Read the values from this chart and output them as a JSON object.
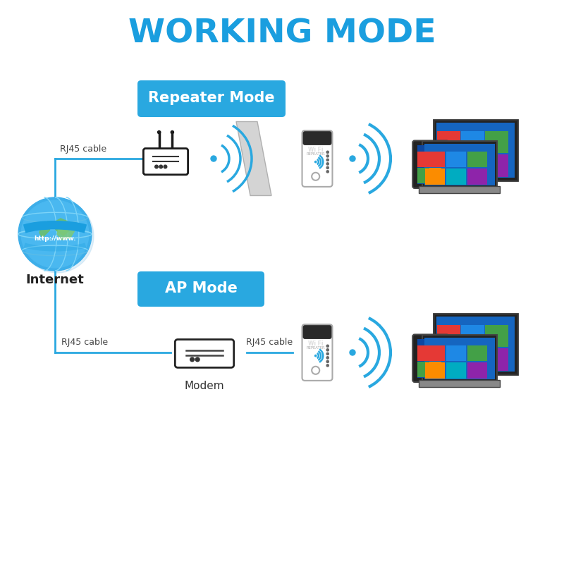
{
  "title": "WORKING MODE",
  "title_color": "#1a9edf",
  "title_fontsize": 34,
  "title_fontweight": "bold",
  "bg_color": "#ffffff",
  "repeater_mode_label": "Repeater Mode",
  "ap_mode_label": "AP Mode",
  "mode_label_bg": "#29a8e0",
  "mode_label_color": "#ffffff",
  "mode_label_fontsize": 15,
  "rj45_label": "RJ45 cable",
  "rj45_label2": "RJ45 cable",
  "internet_label": "Internet",
  "modem_label": "Modem",
  "wifi_color": "#29a8e0",
  "line_color": "#29a8e0",
  "text_color": "#333333",
  "line_color_conn": "#29a8e0"
}
